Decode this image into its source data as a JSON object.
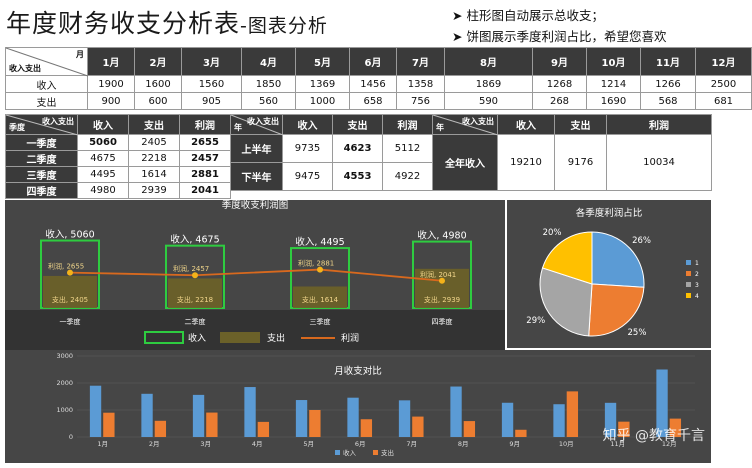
{
  "header": {
    "title_main": "年度财务收支分析表",
    "title_sub": "-图表分析",
    "note_1": "➤ 柱形图自动展示总收支；",
    "note_2": "➤ 饼图展示季度利润占比，希望您喜欢"
  },
  "month_table": {
    "corner_top": "月",
    "corner_bottom": "收入支出",
    "months": [
      "1月",
      "2月",
      "3月",
      "4月",
      "5月",
      "6月",
      "7月",
      "8月",
      "9月",
      "10月",
      "11月",
      "12月"
    ],
    "rows": [
      {
        "label": "收入",
        "values": [
          "1900",
          "1600",
          "1560",
          "1850",
          "1369",
          "1456",
          "1358",
          "1869",
          "1268",
          "1214",
          "1266",
          "2500"
        ]
      },
      {
        "label": "支出",
        "values": [
          "900",
          "600",
          "905",
          "560",
          "1000",
          "658",
          "756",
          "590",
          "268",
          "1690",
          "568",
          "681"
        ]
      }
    ]
  },
  "quarter_table": {
    "corner_top": "收入支出",
    "corner_bottom": "季度",
    "headers": [
      "收入",
      "支出",
      "利润"
    ],
    "rows": [
      {
        "label": "一季度",
        "values": [
          "5060",
          "2405",
          "2655"
        ]
      },
      {
        "label": "二季度",
        "values": [
          "4675",
          "2218",
          "2457"
        ]
      },
      {
        "label": "三季度",
        "values": [
          "4495",
          "1614",
          "2881"
        ]
      },
      {
        "label": "四季度",
        "values": [
          "4980",
          "2939",
          "2041"
        ]
      }
    ]
  },
  "half_table": {
    "corner_top": "收入支出",
    "corner_bottom": "年",
    "headers": [
      "收入",
      "支出",
      "利润"
    ],
    "rows": [
      {
        "label": "上半年",
        "values": [
          "9735",
          "4623",
          "5112"
        ]
      },
      {
        "label": "下半年",
        "values": [
          "9475",
          "4553",
          "4922"
        ]
      }
    ]
  },
  "year_table": {
    "corner_top": "收入支出",
    "corner_bottom": "年",
    "headers": [
      "收入",
      "支出",
      "利润"
    ],
    "row_label": "全年收入",
    "values": [
      "19210",
      "9176",
      "10034"
    ]
  },
  "chart_data": [
    {
      "type": "bar",
      "title": "季度收支利润图",
      "categories": [
        "一季度",
        "二季度",
        "三季度",
        "四季度"
      ],
      "series": [
        {
          "name": "收入",
          "values": [
            5060,
            4675,
            4495,
            4980
          ],
          "color": "#2ecc40",
          "label_prefix": "收入"
        },
        {
          "name": "支出",
          "values": [
            2405,
            2218,
            1614,
            2939
          ],
          "color": "#6b6129",
          "label_prefix": "支出"
        },
        {
          "name": "利润",
          "values": [
            2655,
            2457,
            2881,
            2041
          ],
          "color": "#d8691e",
          "label_prefix": "利润",
          "render": "line"
        }
      ],
      "legend": [
        "收入",
        "支出",
        "利润"
      ],
      "legend_position": "bottom",
      "ylim": [
        0,
        6000
      ]
    },
    {
      "type": "pie",
      "title": "各季度利润占比",
      "labels": [
        "1",
        "2",
        "3",
        "4"
      ],
      "values": [
        26,
        25,
        29,
        20
      ],
      "value_labels": [
        "26%",
        "25%",
        "29%",
        "20%"
      ],
      "colors": [
        "#5b9bd5",
        "#ed7d31",
        "#a5a5a5",
        "#ffc000"
      ],
      "legend_position": "right"
    },
    {
      "type": "bar",
      "title": "月收支对比",
      "categories": [
        "1月",
        "2月",
        "3月",
        "4月",
        "5月",
        "6月",
        "7月",
        "8月",
        "9月",
        "10月",
        "11月",
        "12月"
      ],
      "series": [
        {
          "name": "收入",
          "values": [
            1900,
            1600,
            1560,
            1850,
            1369,
            1456,
            1358,
            1869,
            1268,
            1214,
            1266,
            2500
          ],
          "color": "#5b9bd5"
        },
        {
          "name": "支出",
          "values": [
            900,
            600,
            905,
            560,
            1000,
            658,
            756,
            590,
            268,
            1690,
            568,
            681
          ],
          "color": "#ed7d31"
        }
      ],
      "yticks": [
        "0",
        "1000",
        "2000",
        "3000"
      ],
      "ylim": [
        0,
        3000
      ],
      "legend_position": "bottom"
    }
  ],
  "watermark": "知乎 @教育千言"
}
